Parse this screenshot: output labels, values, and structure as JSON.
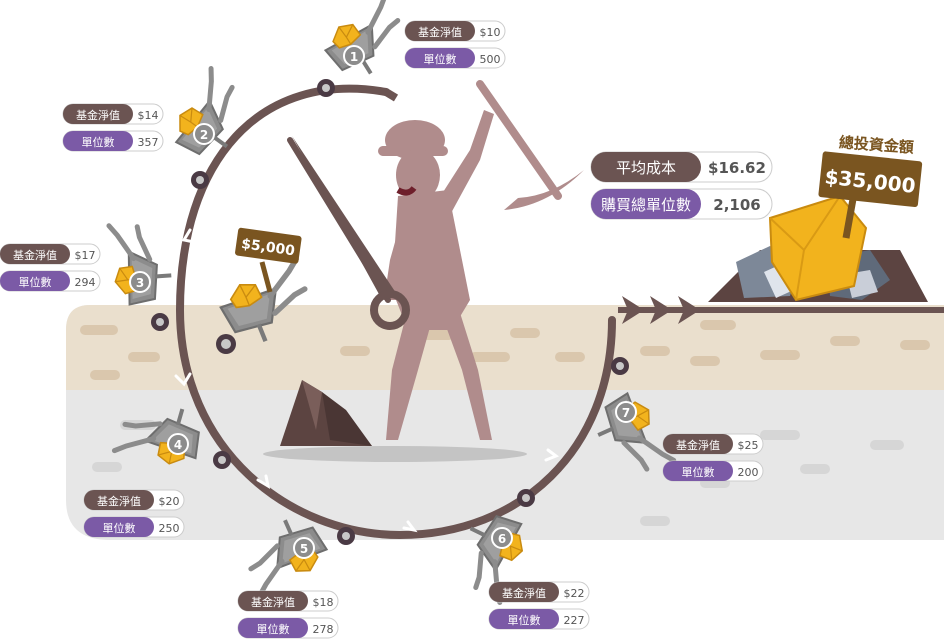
{
  "labels": {
    "nav": "基金淨值",
    "units": "單位數"
  },
  "colors": {
    "brown": "#6b5452",
    "purple": "#7b5aa6",
    "gold": "#f2b31d",
    "sign": "#7a5520",
    "miner": "#b08c8c",
    "ground_beige": "#eadfcd",
    "ground_gray": "#e6e6e6"
  },
  "steps": [
    {
      "num": "1",
      "nav": "$10",
      "units": "500"
    },
    {
      "num": "2",
      "nav": "$14",
      "units": "357"
    },
    {
      "num": "3",
      "nav": "$17",
      "units": "294"
    },
    {
      "num": "4",
      "nav": "$20",
      "units": "250"
    },
    {
      "num": "5",
      "nav": "$18",
      "units": "278"
    },
    {
      "num": "6",
      "nav": "$22",
      "units": "227"
    },
    {
      "num": "7",
      "nav": "$25",
      "units": "200"
    }
  ],
  "investment_sign": "$5,000",
  "summary": {
    "avg_cost_label": "平均成本",
    "avg_cost_value": "$16.62",
    "total_units_label": "購買總單位數",
    "total_units_value": "2,106"
  },
  "total": {
    "title": "總投資金額",
    "amount": "$35,000"
  }
}
